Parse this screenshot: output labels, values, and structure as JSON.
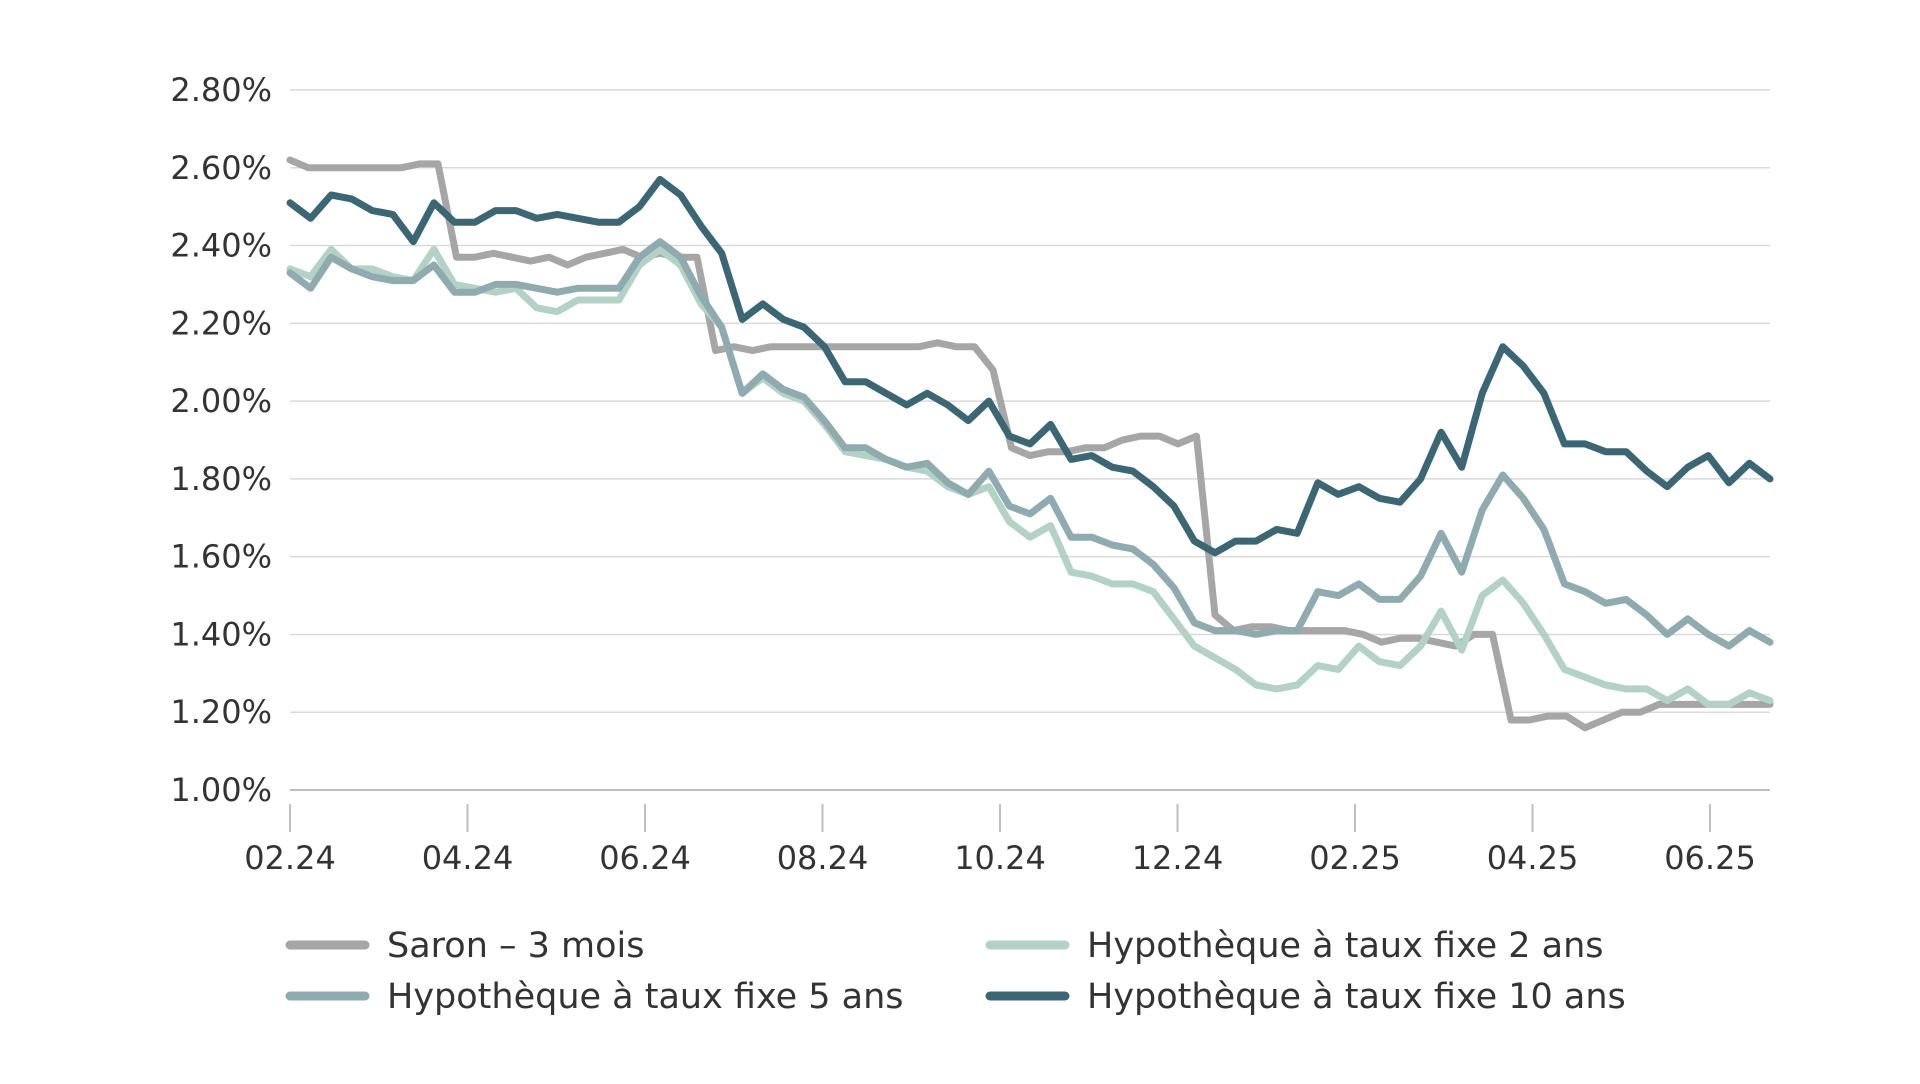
{
  "chart_data": {
    "type": "line",
    "x_labels": [
      "02.24",
      "04.24",
      "06.24",
      "08.24",
      "10.24",
      "12.24",
      "02.25",
      "04.25",
      "06.25"
    ],
    "y_ticks": [
      "1.00%",
      "1.20%",
      "1.40%",
      "1.60%",
      "1.80%",
      "2.00%",
      "2.20%",
      "2.40%",
      "2.60%",
      "2.80%"
    ],
    "ylim": [
      1.0,
      2.8
    ],
    "grid": true,
    "legend_position": "bottom",
    "series": [
      {
        "name": "Saron – 3 mois",
        "color": "#a6a6a6",
        "values": [
          2.62,
          2.6,
          2.6,
          2.6,
          2.6,
          2.6,
          2.6,
          2.61,
          2.61,
          2.37,
          2.37,
          2.38,
          2.37,
          2.36,
          2.37,
          2.35,
          2.37,
          2.38,
          2.39,
          2.37,
          2.38,
          2.37,
          2.37,
          2.13,
          2.14,
          2.13,
          2.14,
          2.14,
          2.14,
          2.14,
          2.14,
          2.14,
          2.14,
          2.14,
          2.14,
          2.15,
          2.14,
          2.14,
          2.08,
          1.88,
          1.86,
          1.87,
          1.87,
          1.88,
          1.88,
          1.9,
          1.91,
          1.91,
          1.89,
          1.91,
          1.45,
          1.41,
          1.42,
          1.42,
          1.41,
          1.41,
          1.41,
          1.41,
          1.4,
          1.38,
          1.39,
          1.39,
          1.38,
          1.37,
          1.4,
          1.4,
          1.18,
          1.18,
          1.19,
          1.19,
          1.16,
          1.18,
          1.2,
          1.2,
          1.22,
          1.22,
          1.22,
          1.22,
          1.22,
          1.22,
          1.22
        ]
      },
      {
        "name": "Hypothèque à taux fixe 2 ans",
        "color": "#b3d1c5",
        "values": [
          2.34,
          2.32,
          2.39,
          2.34,
          2.34,
          2.32,
          2.31,
          2.39,
          2.3,
          2.29,
          2.28,
          2.29,
          2.24,
          2.23,
          2.26,
          2.26,
          2.26,
          2.35,
          2.39,
          2.35,
          2.25,
          2.19,
          2.02,
          2.06,
          2.02,
          2.0,
          1.94,
          1.87,
          1.86,
          1.85,
          1.83,
          1.82,
          1.78,
          1.76,
          1.78,
          1.69,
          1.65,
          1.68,
          1.56,
          1.55,
          1.53,
          1.53,
          1.51,
          1.44,
          1.37,
          1.34,
          1.31,
          1.27,
          1.26,
          1.27,
          1.32,
          1.31,
          1.37,
          1.33,
          1.32,
          1.37,
          1.46,
          1.36,
          1.5,
          1.54,
          1.48,
          1.4,
          1.31,
          1.29,
          1.27,
          1.26,
          1.26,
          1.23,
          1.26,
          1.22,
          1.22,
          1.25,
          1.23
        ]
      },
      {
        "name": "Hypothèque à taux fixe 5 ans",
        "color": "#8fabb0",
        "values": [
          2.33,
          2.29,
          2.37,
          2.34,
          2.32,
          2.31,
          2.31,
          2.35,
          2.28,
          2.28,
          2.3,
          2.3,
          2.29,
          2.28,
          2.29,
          2.29,
          2.29,
          2.37,
          2.41,
          2.37,
          2.27,
          2.19,
          2.02,
          2.07,
          2.03,
          2.01,
          1.95,
          1.88,
          1.88,
          1.85,
          1.83,
          1.84,
          1.79,
          1.76,
          1.82,
          1.73,
          1.71,
          1.75,
          1.65,
          1.65,
          1.63,
          1.62,
          1.58,
          1.52,
          1.43,
          1.41,
          1.41,
          1.4,
          1.41,
          1.41,
          1.51,
          1.5,
          1.53,
          1.49,
          1.49,
          1.55,
          1.66,
          1.56,
          1.72,
          1.81,
          1.75,
          1.67,
          1.53,
          1.51,
          1.48,
          1.49,
          1.45,
          1.4,
          1.44,
          1.4,
          1.37,
          1.41,
          1.38
        ]
      },
      {
        "name": "Hypothèque à taux fixe 10 ans",
        "color": "#3d6675",
        "values": [
          2.51,
          2.47,
          2.53,
          2.52,
          2.49,
          2.48,
          2.41,
          2.51,
          2.46,
          2.46,
          2.49,
          2.49,
          2.47,
          2.48,
          2.47,
          2.46,
          2.46,
          2.5,
          2.57,
          2.53,
          2.45,
          2.38,
          2.21,
          2.25,
          2.21,
          2.19,
          2.14,
          2.05,
          2.05,
          2.02,
          1.99,
          2.02,
          1.99,
          1.95,
          2.0,
          1.91,
          1.89,
          1.94,
          1.85,
          1.86,
          1.83,
          1.82,
          1.78,
          1.73,
          1.64,
          1.61,
          1.64,
          1.64,
          1.67,
          1.66,
          1.79,
          1.76,
          1.78,
          1.75,
          1.74,
          1.8,
          1.92,
          1.83,
          2.02,
          2.14,
          2.09,
          2.02,
          1.89,
          1.89,
          1.87,
          1.87,
          1.82,
          1.78,
          1.83,
          1.86,
          1.79,
          1.84,
          1.8
        ]
      }
    ]
  }
}
